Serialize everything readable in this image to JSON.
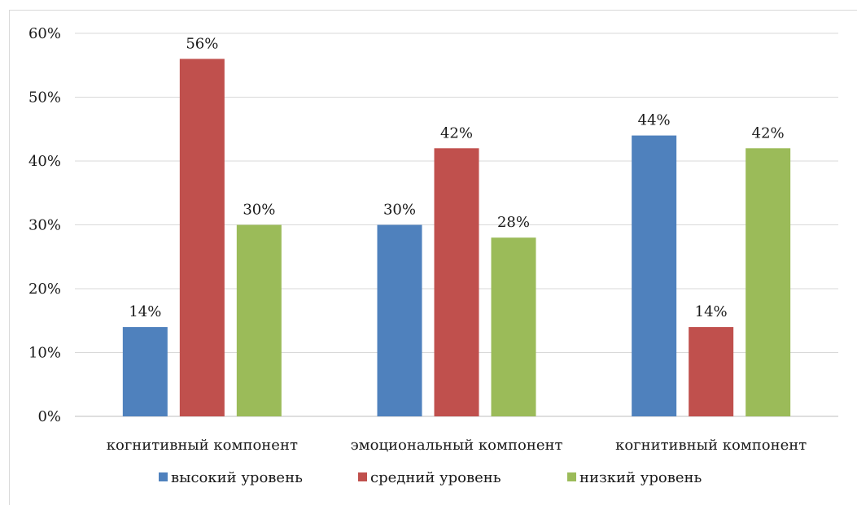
{
  "chart_data": {
    "type": "bar",
    "title": "",
    "xlabel": "",
    "ylabel": "",
    "categories": [
      "когнитивный компонент",
      "эмоциональный компонент",
      "когнитивный компонент"
    ],
    "series": [
      {
        "name": "высокий уровень",
        "color": "#4f81bd",
        "values": [
          14,
          30,
          44
        ],
        "labels": [
          "14%",
          "30%",
          "44%"
        ]
      },
      {
        "name": "средний уровень",
        "color": "#c0504d",
        "values": [
          56,
          42,
          14
        ],
        "labels": [
          "56%",
          "42%",
          "14%"
        ]
      },
      {
        "name": "низкий уровень",
        "color": "#9bbb59",
        "values": [
          30,
          28,
          42
        ],
        "labels": [
          "30%",
          "28%",
          "42%"
        ]
      }
    ],
    "ylim": [
      0,
      60
    ],
    "yticks": [
      0,
      10,
      20,
      30,
      40,
      50,
      60
    ],
    "ytick_labels": [
      "0%",
      "10%",
      "20%",
      "30%",
      "40%",
      "50%",
      "60%"
    ],
    "grid": true,
    "legend_position": "bottom"
  }
}
